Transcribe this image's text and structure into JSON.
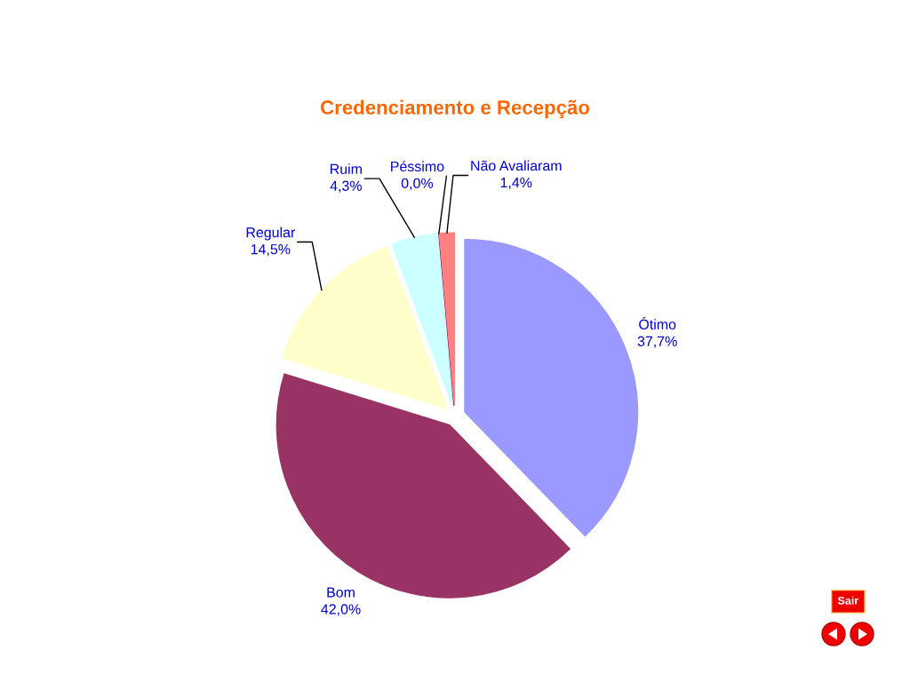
{
  "chart_data": {
    "type": "pie",
    "title": "Credenciamento e Recepção",
    "categories": [
      "Ótimo",
      "Bom",
      "Regular",
      "Ruim",
      "Péssimo",
      "Não Avaliaram"
    ],
    "values": [
      37.7,
      42.0,
      14.5,
      4.3,
      0.0,
      1.4
    ],
    "value_labels": [
      "37,7%",
      "42,0%",
      "14,5%",
      "4,3%",
      "0,0%",
      "1,4%"
    ],
    "colors": [
      "#9999ff",
      "#993366",
      "#ffffcc",
      "#ccffff",
      "#660066",
      "#ff8080"
    ],
    "annotations": [
      "Sair"
    ]
  }
}
